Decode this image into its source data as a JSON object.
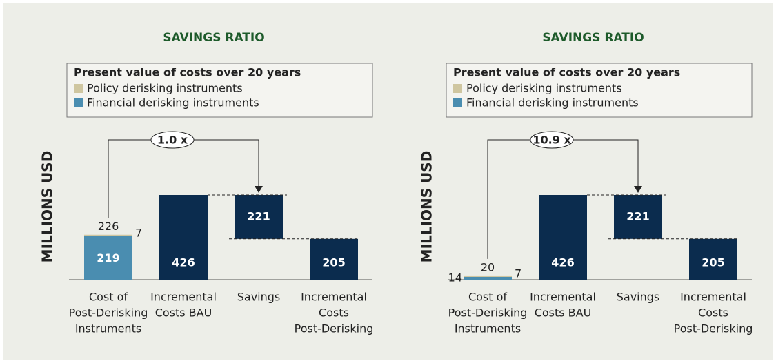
{
  "chart_data": [
    {
      "type": "waterfall",
      "title": "SAVINGS RATIO",
      "legend_title": "Present value of costs over 20 years",
      "y_label": "MILLIONS USD",
      "ratio_label": "1.0 x",
      "categories": [
        [
          "Cost of",
          "Post-Derisking",
          "Instruments"
        ],
        [
          "Incremental",
          "Costs BAU"
        ],
        [
          "Savings"
        ],
        [
          "Incremental",
          "Costs",
          "Post-Derisking"
        ]
      ],
      "series": [
        {
          "name": "Policy derisking instruments",
          "color": "#cfc6a0",
          "values": [
            7,
            null,
            null,
            null
          ]
        },
        {
          "name": "Financial derisking instruments",
          "color": "#4a8db0",
          "values": [
            219,
            null,
            null,
            null
          ]
        }
      ],
      "values": [
        null,
        426,
        221,
        205
      ],
      "color": "#0b2c4e",
      "totals": [
        226,
        null,
        null,
        null
      ]
    },
    {
      "type": "waterfall",
      "title": "SAVINGS RATIO",
      "legend_title": "Present value of costs over 20 years",
      "y_label": "MILLIONS USD",
      "ratio_label": "10.9 x",
      "categories": [
        [
          "Cost of",
          "Post-Derisking",
          "Instruments"
        ],
        [
          "Incremental",
          "Costs BAU"
        ],
        [
          "Savings"
        ],
        [
          "Incremental",
          "Costs",
          "Post-Derisking"
        ]
      ],
      "series": [
        {
          "name": "Policy derisking instruments",
          "color": "#cfc6a0",
          "values": [
            7,
            null,
            null,
            null
          ]
        },
        {
          "name": "Financial derisking instruments",
          "color": "#4a8db0",
          "values": [
            14,
            null,
            null,
            null
          ]
        }
      ],
      "values": [
        null,
        426,
        221,
        205
      ],
      "color": "#0b2c4e",
      "totals": [
        20,
        null,
        null,
        null
      ]
    }
  ]
}
